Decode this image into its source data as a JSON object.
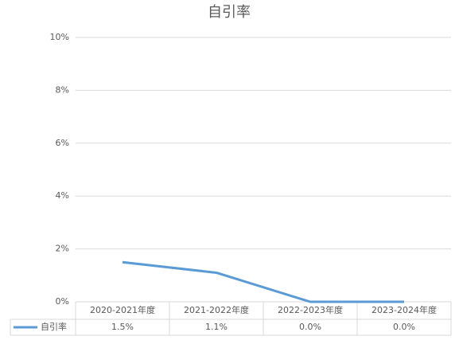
{
  "chart_data": {
    "type": "line",
    "title": "自引率",
    "categories": [
      "2020-2021年度",
      "2021-2022年度",
      "2022-2023年度",
      "2023-2024年度"
    ],
    "series": [
      {
        "name": "自引率",
        "color": "#5b9bd5",
        "values": [
          1.5,
          1.1,
          0.0,
          0.0
        ],
        "value_labels": [
          "1.5%",
          "1.1%",
          "0.0%",
          "0.0%"
        ]
      }
    ],
    "ylim": [
      0,
      10
    ],
    "yticks": [
      {
        "value": 0,
        "label": "0%"
      },
      {
        "value": 2,
        "label": "2%"
      },
      {
        "value": 4,
        "label": "4%"
      },
      {
        "value": 6,
        "label": "6%"
      },
      {
        "value": 8,
        "label": "8%"
      },
      {
        "value": 10,
        "label": "10%"
      }
    ],
    "grid": true
  }
}
